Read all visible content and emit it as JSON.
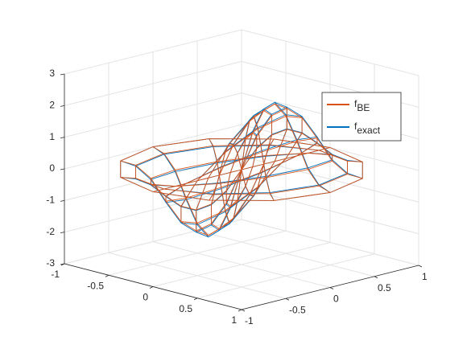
{
  "chart_data": {
    "type": "mesh3d",
    "r": [
      0,
      0.125,
      0.25,
      0.375,
      0.5,
      0.625,
      0.75,
      0.875,
      1
    ],
    "theta": [
      0,
      30,
      60,
      90,
      120,
      150,
      180,
      210,
      240,
      270,
      300,
      330
    ],
    "series": [
      {
        "name": "f",
        "subscript": "exact",
        "color": "#0072bd",
        "z": [
          [
            0,
            0,
            0,
            0,
            0,
            0,
            0,
            0,
            0,
            0,
            0,
            0
          ],
          [
            1.3,
            1.13,
            0.65,
            0,
            -0.65,
            -1.13,
            -1.3,
            -1.13,
            -0.65,
            0,
            0.65,
            1.13
          ],
          [
            2.1,
            1.82,
            1.05,
            0,
            -1.05,
            -1.82,
            -2.1,
            -1.82,
            -1.05,
            0,
            1.05,
            1.82
          ],
          [
            2.4,
            2.08,
            1.2,
            0,
            -1.2,
            -2.08,
            -2.4,
            -2.08,
            -1.2,
            0,
            1.2,
            2.08
          ],
          [
            2.1,
            1.82,
            1.05,
            0,
            -1.05,
            -1.82,
            -2.1,
            -1.82,
            -1.05,
            0,
            1.05,
            1.82
          ],
          [
            1.4,
            1.21,
            0.7,
            0,
            -0.7,
            -1.21,
            -1.4,
            -1.21,
            -0.7,
            0,
            0.7,
            1.21
          ],
          [
            0.6,
            0.52,
            0.3,
            0,
            -0.3,
            -0.52,
            -0.6,
            -0.52,
            -0.3,
            0,
            0.3,
            0.52
          ],
          [
            0.15,
            0.13,
            0.08,
            0,
            -0.08,
            -0.13,
            -0.15,
            -0.13,
            -0.08,
            0,
            0.08,
            0.13
          ],
          [
            0,
            0,
            0,
            0,
            0,
            0,
            0,
            0,
            0,
            0,
            0,
            0
          ]
        ]
      },
      {
        "name": "f",
        "subscript": "BE",
        "color": "#d95319",
        "z": [
          [
            0,
            0,
            0,
            0,
            0,
            0,
            0,
            0,
            0,
            0,
            0,
            0
          ],
          [
            1.25,
            1.08,
            0.63,
            0,
            -0.63,
            -1.08,
            -1.25,
            -1.08,
            -0.63,
            0,
            0.63,
            1.08
          ],
          [
            2.05,
            1.78,
            1.03,
            0,
            -1.03,
            -1.78,
            -2.05,
            -1.78,
            -1.03,
            0,
            1.03,
            1.78
          ],
          [
            2.35,
            2.04,
            1.18,
            0,
            -1.18,
            -2.04,
            -2.35,
            -2.04,
            -1.18,
            0,
            1.18,
            2.04
          ],
          [
            2.05,
            1.78,
            1.03,
            0,
            -1.03,
            -1.78,
            -2.05,
            -1.78,
            -1.03,
            0,
            1.03,
            1.78
          ],
          [
            1.35,
            1.17,
            0.68,
            0,
            -0.68,
            -1.17,
            -1.35,
            -1.17,
            -0.68,
            0,
            0.68,
            1.17
          ],
          [
            0.55,
            0.48,
            0.28,
            0,
            -0.28,
            -0.48,
            -0.55,
            -0.48,
            -0.28,
            0,
            0.28,
            0.48
          ],
          [
            0.12,
            0.1,
            0.06,
            0,
            -0.06,
            -0.1,
            -0.12,
            -0.1,
            -0.06,
            0,
            0.06,
            0.1
          ],
          [
            0,
            0,
            0,
            0,
            0,
            0,
            0,
            0,
            0,
            0,
            0,
            0
          ]
        ]
      }
    ],
    "legend_order": [
      1,
      0
    ],
    "xlim": [
      -1,
      1
    ],
    "ylim": [
      -1,
      1
    ],
    "zlim": [
      -3,
      3
    ],
    "xticks": [
      -1,
      -0.5,
      0,
      0.5,
      1
    ],
    "yticks": [
      -1,
      -0.5,
      0,
      0.5,
      1
    ],
    "zticks": [
      -3,
      -2,
      -1,
      0,
      1,
      2,
      3
    ],
    "grid": true
  }
}
